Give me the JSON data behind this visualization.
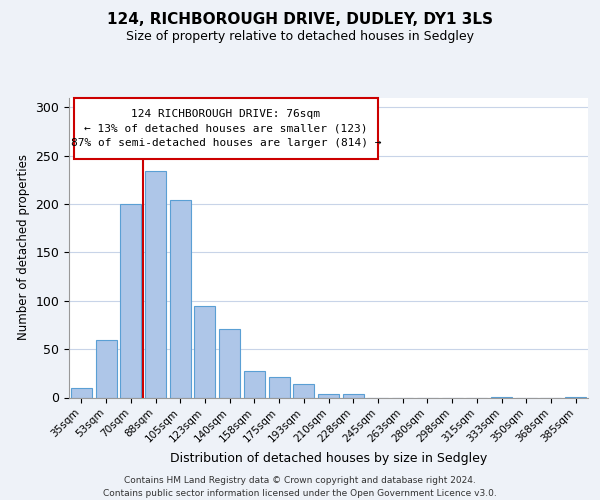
{
  "title": "124, RICHBOROUGH DRIVE, DUDLEY, DY1 3LS",
  "subtitle": "Size of property relative to detached houses in Sedgley",
  "xlabel": "Distribution of detached houses by size in Sedgley",
  "ylabel": "Number of detached properties",
  "bar_labels": [
    "35sqm",
    "53sqm",
    "70sqm",
    "88sqm",
    "105sqm",
    "123sqm",
    "140sqm",
    "158sqm",
    "175sqm",
    "193sqm",
    "210sqm",
    "228sqm",
    "245sqm",
    "263sqm",
    "280sqm",
    "298sqm",
    "315sqm",
    "333sqm",
    "350sqm",
    "368sqm",
    "385sqm"
  ],
  "bar_values": [
    10,
    59,
    200,
    234,
    204,
    95,
    71,
    27,
    21,
    14,
    4,
    4,
    0,
    0,
    0,
    0,
    0,
    1,
    0,
    0,
    1
  ],
  "bar_color": "#aec6e8",
  "bar_edge_color": "#5a9fd4",
  "vline_color": "#cc0000",
  "vline_x": 2.5,
  "ylim": [
    0,
    310
  ],
  "yticks": [
    0,
    50,
    100,
    150,
    200,
    250,
    300
  ],
  "ann_line1": "124 RICHBOROUGH DRIVE: 76sqm",
  "ann_line2": "← 13% of detached houses are smaller (123)",
  "ann_line3": "87% of semi-detached houses are larger (814) →",
  "footer_line1": "Contains HM Land Registry data © Crown copyright and database right 2024.",
  "footer_line2": "Contains public sector information licensed under the Open Government Licence v3.0.",
  "background_color": "#eef2f8",
  "plot_bg_color": "#ffffff",
  "grid_color": "#c8d4e8"
}
